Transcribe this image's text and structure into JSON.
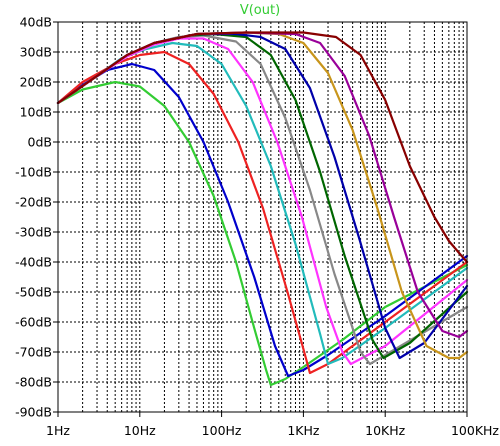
{
  "chart_data": {
    "type": "line",
    "title": "V(out)",
    "xlabel": "",
    "ylabel": "",
    "x_scale": "log",
    "xlim": [
      1,
      100000
    ],
    "ylim": [
      -90,
      40
    ],
    "grid": true,
    "x_ticks": [
      "1Hz",
      "10Hz",
      "100Hz",
      "1KHz",
      "10KHz",
      "100KHz"
    ],
    "y_ticks": [
      "40dB",
      "30dB",
      "20dB",
      "10dB",
      "0dB",
      "-10dB",
      "-20dB",
      "-30dB",
      "-40dB",
      "-50dB",
      "-60dB",
      "-70dB",
      "-80dB",
      "-90dB"
    ],
    "x_tick_values": [
      1,
      10,
      100,
      1000,
      10000,
      100000
    ],
    "y_tick_values": [
      40,
      30,
      20,
      10,
      0,
      -10,
      -20,
      -30,
      -40,
      -50,
      -60,
      -70,
      -80,
      -90
    ],
    "colors": {
      "axis": "#000000",
      "grid": "#000000",
      "title": "#33cc33",
      "background": "#ffffff"
    },
    "series": [
      {
        "color": "#33cc33",
        "x": [
          1,
          2,
          5,
          10,
          20,
          40,
          80,
          150,
          250,
          350,
          400,
          600,
          1000,
          3000,
          10000,
          100000
        ],
        "y": [
          13,
          17.5,
          20,
          18.5,
          12,
          0,
          -18,
          -40,
          -62,
          -76,
          -81,
          -79,
          -75,
          -66,
          -55,
          -41
        ]
      },
      {
        "color": "#0000cc",
        "x": [
          1,
          2,
          4,
          8,
          15,
          30,
          60,
          120,
          250,
          450,
          650,
          1000,
          2000,
          10000,
          100000
        ],
        "y": [
          13,
          19,
          24,
          26,
          24,
          15,
          0,
          -20,
          -45,
          -68,
          -78,
          -76,
          -71,
          -58,
          -38
        ]
      },
      {
        "color": "#ee2222",
        "x": [
          1,
          2,
          5,
          10,
          20,
          40,
          80,
          160,
          320,
          640,
          1000,
          1200,
          2000,
          10000,
          100000
        ],
        "y": [
          13,
          20,
          26,
          29,
          30,
          26,
          16,
          0,
          -22,
          -50,
          -69,
          -77,
          -74,
          -60,
          -40
        ]
      },
      {
        "color": "#22bbbb",
        "x": [
          1,
          3,
          6,
          12,
          25,
          50,
          100,
          200,
          400,
          800,
          1600,
          2000,
          3000,
          10000,
          100000
        ],
        "y": [
          13,
          22,
          28,
          31,
          33,
          32,
          26,
          12,
          -8,
          -34,
          -64,
          -74,
          -72,
          -62,
          -42
        ]
      },
      {
        "color": "#ff33ff",
        "x": [
          1,
          3,
          7,
          15,
          30,
          60,
          120,
          240,
          480,
          960,
          1900,
          3000,
          3800,
          10000,
          100000
        ],
        "y": [
          13,
          22,
          28.5,
          32.5,
          34.5,
          34.5,
          31,
          20,
          0,
          -25,
          -55,
          -70,
          -74,
          -68,
          -46
        ]
      },
      {
        "color": "#888888",
        "x": [
          1,
          3,
          7,
          15,
          30,
          60,
          150,
          300,
          600,
          1200,
          2400,
          5000,
          6500,
          10000,
          100000
        ],
        "y": [
          13,
          22,
          29,
          33,
          35,
          35.5,
          33.5,
          26,
          8,
          -16,
          -44,
          -70,
          -74,
          -71,
          -55
        ]
      },
      {
        "color": "#006600",
        "x": [
          1,
          3,
          7,
          15,
          40,
          80,
          200,
          400,
          800,
          1600,
          3200,
          7000,
          9500,
          20000,
          100000
        ],
        "y": [
          13,
          22,
          29,
          33,
          35.5,
          36,
          35,
          29,
          14,
          -10,
          -38,
          -66,
          -72,
          -67,
          -50
        ]
      },
      {
        "color": "#0000aa",
        "x": [
          1,
          3,
          7,
          15,
          50,
          150,
          300,
          600,
          1200,
          2400,
          4800,
          10000,
          15000,
          30000,
          100000
        ],
        "y": [
          13,
          22,
          29,
          33,
          36,
          36,
          35,
          31,
          18,
          -5,
          -32,
          -62,
          -72,
          -67,
          -48
        ]
      },
      {
        "color": "#c8951b",
        "x": [
          1,
          3,
          7,
          15,
          50,
          200,
          500,
          1000,
          2000,
          4000,
          8000,
          16000,
          32000,
          60000,
          80000,
          100000
        ],
        "y": [
          13,
          22,
          29,
          33,
          36,
          36.5,
          36,
          33,
          23,
          4,
          -22,
          -50,
          -68,
          -72,
          -72,
          -70
        ]
      },
      {
        "color": "#990099",
        "x": [
          1,
          3,
          7,
          15,
          50,
          200,
          800,
          1600,
          3200,
          6400,
          12800,
          25000,
          50000,
          80000,
          100000
        ],
        "y": [
          13,
          22,
          29,
          33,
          36,
          36.5,
          36,
          33,
          22,
          2,
          -25,
          -50,
          -63,
          -65,
          -63
        ]
      },
      {
        "color": "#880000",
        "x": [
          1,
          3,
          7,
          15,
          50,
          200,
          1000,
          2500,
          5000,
          10000,
          20000,
          40000,
          60000,
          80000,
          100000
        ],
        "y": [
          13,
          22,
          29,
          33,
          36,
          36.5,
          36.5,
          35,
          29,
          14,
          -8,
          -25,
          -33,
          -37,
          -40
        ]
      }
    ]
  }
}
